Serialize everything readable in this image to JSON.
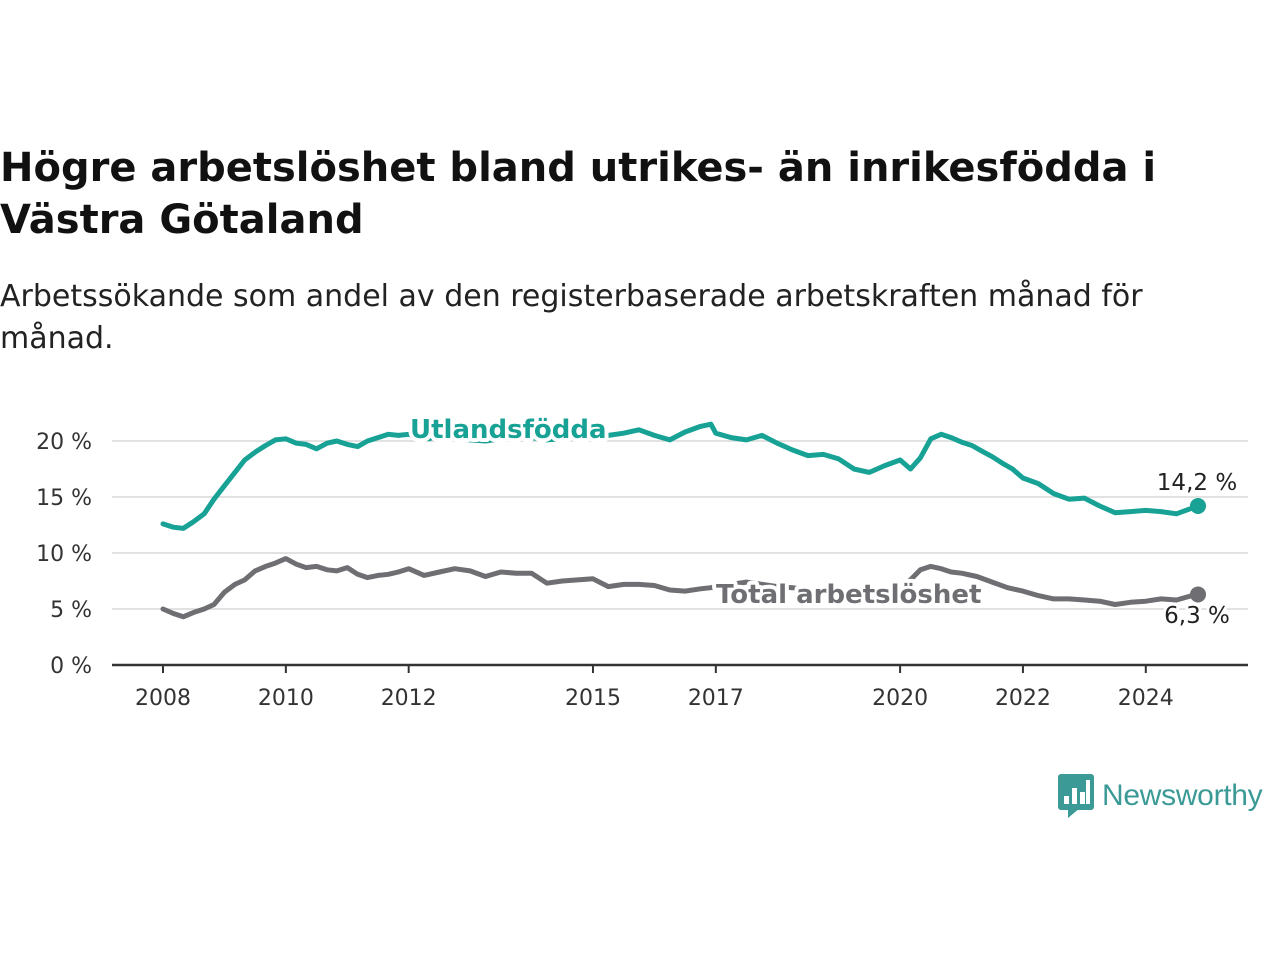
{
  "title": "Högre arbetslöshet bland utrikes- än inrikesfödda i Västra Götaland",
  "subtitle": "Arbetssökande som andel av den registerbaserade arbetskraften månad för månad.",
  "brand": {
    "name": "Newsworthy",
    "color": "#3b9a96"
  },
  "chart_data": {
    "type": "line",
    "title": "Högre arbetslöshet bland utrikes- än inrikesfödda i Västra Götaland",
    "xlabel": "",
    "ylabel": "",
    "ylim": [
      0,
      20
    ],
    "xlim": [
      2008,
      2025
    ],
    "y_ticks": [
      {
        "value": 0,
        "label": "0 %"
      },
      {
        "value": 5,
        "label": "5 %"
      },
      {
        "value": 10,
        "label": "10 %"
      },
      {
        "value": 15,
        "label": "15 %"
      },
      {
        "value": 20,
        "label": "20 %"
      }
    ],
    "x_ticks": [
      {
        "value": 2008,
        "label": "2008"
      },
      {
        "value": 2010,
        "label": "2010"
      },
      {
        "value": 2012,
        "label": "2012"
      },
      {
        "value": 2015,
        "label": "2015"
      },
      {
        "value": 2017,
        "label": "2017"
      },
      {
        "value": 2020,
        "label": "2020"
      },
      {
        "value": 2022,
        "label": "2022"
      },
      {
        "value": 2024,
        "label": "2024"
      }
    ],
    "grid": true,
    "legend": "inline labels",
    "series": [
      {
        "name": "Utlandsfödda",
        "color": "#17a295",
        "end_label": "14,2 %",
        "x": [
          2008.0,
          2008.17,
          2008.33,
          2008.5,
          2008.67,
          2008.83,
          2009.0,
          2009.17,
          2009.33,
          2009.5,
          2009.67,
          2009.83,
          2010.0,
          2010.17,
          2010.33,
          2010.5,
          2010.67,
          2010.83,
          2011.0,
          2011.17,
          2011.33,
          2011.5,
          2011.67,
          2011.83,
          2012.0,
          2012.17,
          2012.33,
          2012.5,
          2012.67,
          2012.83,
          2013.0,
          2013.25,
          2013.5,
          2013.75,
          2014.0,
          2014.25,
          2014.5,
          2014.75,
          2015.0,
          2015.25,
          2015.5,
          2015.75,
          2016.0,
          2016.25,
          2016.5,
          2016.75,
          2016.92,
          2017.0,
          2017.25,
          2017.5,
          2017.75,
          2018.0,
          2018.25,
          2018.5,
          2018.75,
          2019.0,
          2019.25,
          2019.5,
          2019.75,
          2020.0,
          2020.17,
          2020.33,
          2020.5,
          2020.67,
          2020.83,
          2021.0,
          2021.17,
          2021.33,
          2021.5,
          2021.67,
          2021.83,
          2022.0,
          2022.25,
          2022.5,
          2022.75,
          2023.0,
          2023.25,
          2023.5,
          2023.75,
          2024.0,
          2024.25,
          2024.5,
          2024.75,
          2024.85
        ],
        "values": [
          12.6,
          12.3,
          12.2,
          12.8,
          13.5,
          14.8,
          16.0,
          17.2,
          18.3,
          19.0,
          19.6,
          20.1,
          20.2,
          19.8,
          19.7,
          19.3,
          19.8,
          20.0,
          19.7,
          19.5,
          20.0,
          20.3,
          20.6,
          20.5,
          20.6,
          20.3,
          20.2,
          20.5,
          20.4,
          20.2,
          20.1,
          20.0,
          20.2,
          20.4,
          20.3,
          20.1,
          20.2,
          20.3,
          20.3,
          20.5,
          20.7,
          21.0,
          20.5,
          20.1,
          20.8,
          21.3,
          21.5,
          20.7,
          20.3,
          20.1,
          20.5,
          19.8,
          19.2,
          18.7,
          18.8,
          18.4,
          17.5,
          17.2,
          17.8,
          18.3,
          17.5,
          18.5,
          20.2,
          20.6,
          20.3,
          19.9,
          19.6,
          19.1,
          18.6,
          18.0,
          17.5,
          16.7,
          16.2,
          15.3,
          14.8,
          14.9,
          14.2,
          13.6,
          13.7,
          13.8,
          13.7,
          13.5,
          14.0,
          14.2
        ]
      },
      {
        "name": "Total arbetslöshet",
        "color": "#6e6e73",
        "end_label": "6,3 %",
        "x": [
          2008.0,
          2008.17,
          2008.33,
          2008.5,
          2008.67,
          2008.83,
          2009.0,
          2009.17,
          2009.33,
          2009.5,
          2009.67,
          2009.83,
          2010.0,
          2010.17,
          2010.33,
          2010.5,
          2010.67,
          2010.83,
          2011.0,
          2011.17,
          2011.33,
          2011.5,
          2011.67,
          2011.83,
          2012.0,
          2012.25,
          2012.5,
          2012.75,
          2013.0,
          2013.25,
          2013.5,
          2013.75,
          2014.0,
          2014.25,
          2014.5,
          2014.75,
          2015.0,
          2015.25,
          2015.5,
          2015.75,
          2016.0,
          2016.25,
          2016.5,
          2016.75,
          2016.92,
          2017.0,
          2017.25,
          2017.5,
          2017.75,
          2018.0,
          2018.25,
          2018.5,
          2018.75,
          2019.0,
          2019.25,
          2019.5,
          2019.75,
          2020.0,
          2020.17,
          2020.33,
          2020.5,
          2020.67,
          2020.83,
          2021.0,
          2021.25,
          2021.5,
          2021.75,
          2022.0,
          2022.25,
          2022.5,
          2022.75,
          2023.0,
          2023.25,
          2023.5,
          2023.75,
          2024.0,
          2024.25,
          2024.5,
          2024.75,
          2024.85
        ],
        "values": [
          5.0,
          4.6,
          4.3,
          4.7,
          5.0,
          5.4,
          6.5,
          7.2,
          7.6,
          8.4,
          8.8,
          9.1,
          9.5,
          9.0,
          8.7,
          8.8,
          8.5,
          8.4,
          8.7,
          8.1,
          7.8,
          8.0,
          8.1,
          8.3,
          8.6,
          8.0,
          8.3,
          8.6,
          8.4,
          7.9,
          8.3,
          8.2,
          8.2,
          7.3,
          7.5,
          7.6,
          7.7,
          7.0,
          7.2,
          7.2,
          7.1,
          6.7,
          6.6,
          6.8,
          6.9,
          7.0,
          7.2,
          7.4,
          7.2,
          7.0,
          6.9,
          6.7,
          6.6,
          6.4,
          6.2,
          6.1,
          6.3,
          6.9,
          7.6,
          8.5,
          8.8,
          8.6,
          8.3,
          8.2,
          7.9,
          7.4,
          6.9,
          6.6,
          6.2,
          5.9,
          5.9,
          5.8,
          5.7,
          5.4,
          5.6,
          5.7,
          5.9,
          5.8,
          6.2,
          6.3
        ]
      }
    ]
  }
}
